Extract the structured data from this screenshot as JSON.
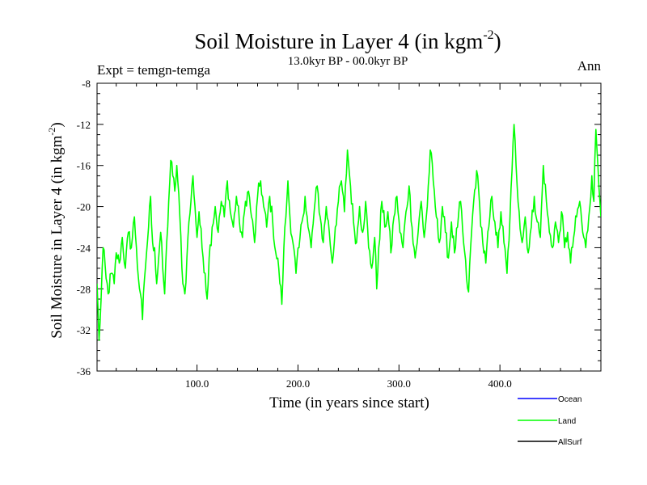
{
  "chart_data": {
    "type": "line",
    "title": "Soil Moisture in Layer 4 (in kgm",
    "title_sup": "-2",
    "title_close": ")",
    "subtitle": "13.0kyr BP - 00.0kyr BP",
    "expt_label": "Expt = temgn-temga",
    "season_label": "Ann",
    "xlabel": "Time (in years since start)",
    "ylabel": "Soil Moisture in Layer 4 (in kgm",
    "ylabel_sup": "-2",
    "ylabel_close": ")",
    "xlim": [
      1,
      500
    ],
    "ylim": [
      -36,
      -8
    ],
    "x_ticks": [
      100,
      200,
      300,
      400
    ],
    "x_tick_labels": [
      "100.0",
      "200.0",
      "300.0",
      "400.0"
    ],
    "y_ticks": [
      -36,
      -32,
      -28,
      -24,
      -20,
      -16,
      -12,
      -8
    ],
    "y_tick_labels": [
      "-36",
      "-32",
      "-28",
      "-24",
      "-20",
      "-16",
      "-12",
      "-8"
    ],
    "grid": false,
    "legend_position": "bottom-right",
    "series": [
      {
        "name": "Ocean",
        "color": "#0000ff",
        "values": []
      },
      {
        "name": "Land",
        "color": "#00ff00",
        "values": []
      },
      {
        "name": "AllSurf",
        "color": "#000000",
        "values": []
      }
    ],
    "land_anchor_points": [
      [
        1,
        -27.5
      ],
      [
        3,
        -33.0
      ],
      [
        5,
        -29.0
      ],
      [
        7,
        -24.0
      ],
      [
        10,
        -27.0
      ],
      [
        12,
        -28.5
      ],
      [
        15,
        -26.5
      ],
      [
        18,
        -27.5
      ],
      [
        20,
        -24.5
      ],
      [
        23,
        -25.5
      ],
      [
        26,
        -23.0
      ],
      [
        29,
        -26.0
      ],
      [
        32,
        -22.5
      ],
      [
        35,
        -24.0
      ],
      [
        38,
        -21.0
      ],
      [
        40,
        -24.0
      ],
      [
        42,
        -27.0
      ],
      [
        44,
        -28.5
      ],
      [
        46,
        -31.0
      ],
      [
        48,
        -27.0
      ],
      [
        50,
        -24.5
      ],
      [
        52,
        -22.0
      ],
      [
        54,
        -19.0
      ],
      [
        56,
        -23.5
      ],
      [
        58,
        -24.0
      ],
      [
        60,
        -27.5
      ],
      [
        62,
        -25.0
      ],
      [
        64,
        -22.5
      ],
      [
        66,
        -26.0
      ],
      [
        68,
        -28.5
      ],
      [
        70,
        -23.5
      ],
      [
        72,
        -19.5
      ],
      [
        74,
        -15.5
      ],
      [
        76,
        -17.0
      ],
      [
        78,
        -18.5
      ],
      [
        80,
        -16.0
      ],
      [
        83,
        -21.0
      ],
      [
        86,
        -27.5
      ],
      [
        88,
        -28.5
      ],
      [
        90,
        -25.0
      ],
      [
        92,
        -21.5
      ],
      [
        94,
        -19.5
      ],
      [
        96,
        -17.0
      ],
      [
        98,
        -20.0
      ],
      [
        100,
        -23.0
      ],
      [
        102,
        -20.5
      ],
      [
        105,
        -24.0
      ],
      [
        108,
        -26.5
      ],
      [
        110,
        -29.0
      ],
      [
        112,
        -25.0
      ],
      [
        115,
        -22.0
      ],
      [
        118,
        -20.0
      ],
      [
        121,
        -22.5
      ],
      [
        124,
        -19.5
      ],
      [
        127,
        -21.0
      ],
      [
        130,
        -17.5
      ],
      [
        133,
        -20.5
      ],
      [
        136,
        -22.0
      ],
      [
        139,
        -19.0
      ],
      [
        142,
        -21.5
      ],
      [
        145,
        -23.0
      ],
      [
        148,
        -19.5
      ],
      [
        151,
        -18.5
      ],
      [
        154,
        -21.0
      ],
      [
        157,
        -23.5
      ],
      [
        160,
        -19.0
      ],
      [
        163,
        -17.5
      ],
      [
        166,
        -20.0
      ],
      [
        169,
        -22.0
      ],
      [
        172,
        -19.0
      ],
      [
        175,
        -21.5
      ],
      [
        178,
        -24.5
      ],
      [
        181,
        -26.0
      ],
      [
        184,
        -29.5
      ],
      [
        186,
        -24.0
      ],
      [
        188,
        -21.0
      ],
      [
        190,
        -17.5
      ],
      [
        192,
        -21.0
      ],
      [
        195,
        -23.5
      ],
      [
        198,
        -26.5
      ],
      [
        201,
        -24.0
      ],
      [
        204,
        -21.5
      ],
      [
        207,
        -19.0
      ],
      [
        210,
        -22.0
      ],
      [
        213,
        -24.0
      ],
      [
        216,
        -20.5
      ],
      [
        219,
        -18.0
      ],
      [
        222,
        -21.0
      ],
      [
        225,
        -23.5
      ],
      [
        228,
        -20.0
      ],
      [
        231,
        -22.5
      ],
      [
        234,
        -25.5
      ],
      [
        237,
        -22.0
      ],
      [
        240,
        -19.5
      ],
      [
        243,
        -17.5
      ],
      [
        246,
        -20.5
      ],
      [
        249,
        -14.5
      ],
      [
        252,
        -18.0
      ],
      [
        255,
        -21.5
      ],
      [
        258,
        -23.5
      ],
      [
        261,
        -20.0
      ],
      [
        264,
        -22.5
      ],
      [
        267,
        -19.5
      ],
      [
        270,
        -24.0
      ],
      [
        273,
        -26.0
      ],
      [
        276,
        -23.0
      ],
      [
        278,
        -28.0
      ],
      [
        280,
        -24.0
      ],
      [
        283,
        -19.5
      ],
      [
        286,
        -22.0
      ],
      [
        289,
        -20.5
      ],
      [
        292,
        -24.5
      ],
      [
        295,
        -21.0
      ],
      [
        298,
        -19.0
      ],
      [
        301,
        -22.5
      ],
      [
        304,
        -24.0
      ],
      [
        307,
        -20.5
      ],
      [
        310,
        -18.0
      ],
      [
        313,
        -22.0
      ],
      [
        316,
        -25.0
      ],
      [
        319,
        -22.5
      ],
      [
        322,
        -19.5
      ],
      [
        325,
        -23.0
      ],
      [
        328,
        -20.0
      ],
      [
        331,
        -14.5
      ],
      [
        334,
        -17.5
      ],
      [
        337,
        -21.0
      ],
      [
        340,
        -23.5
      ],
      [
        343,
        -20.0
      ],
      [
        346,
        -22.5
      ],
      [
        349,
        -25.0
      ],
      [
        352,
        -21.5
      ],
      [
        355,
        -24.5
      ],
      [
        358,
        -22.0
      ],
      [
        361,
        -19.5
      ],
      [
        364,
        -23.5
      ],
      [
        367,
        -27.0
      ],
      [
        369,
        -28.3
      ],
      [
        371,
        -24.0
      ],
      [
        374,
        -19.5
      ],
      [
        377,
        -16.5
      ],
      [
        380,
        -20.0
      ],
      [
        383,
        -23.5
      ],
      [
        386,
        -25.5
      ],
      [
        389,
        -22.0
      ],
      [
        392,
        -19.0
      ],
      [
        395,
        -21.5
      ],
      [
        398,
        -24.0
      ],
      [
        401,
        -20.5
      ],
      [
        404,
        -23.5
      ],
      [
        407,
        -26.5
      ],
      [
        410,
        -21.0
      ],
      [
        412,
        -16.5
      ],
      [
        414,
        -12.0
      ],
      [
        416,
        -16.0
      ],
      [
        419,
        -20.5
      ],
      [
        422,
        -23.5
      ],
      [
        425,
        -21.0
      ],
      [
        428,
        -24.5
      ],
      [
        431,
        -22.0
      ],
      [
        434,
        -19.0
      ],
      [
        437,
        -21.5
      ],
      [
        440,
        -23.0
      ],
      [
        443,
        -16.0
      ],
      [
        446,
        -19.5
      ],
      [
        449,
        -22.5
      ],
      [
        452,
        -24.0
      ],
      [
        455,
        -21.5
      ],
      [
        458,
        -23.5
      ],
      [
        461,
        -20.5
      ],
      [
        464,
        -24.0
      ],
      [
        467,
        -22.5
      ],
      [
        470,
        -25.5
      ],
      [
        473,
        -23.0
      ],
      [
        476,
        -21.0
      ],
      [
        479,
        -19.5
      ],
      [
        482,
        -22.5
      ],
      [
        485,
        -24.0
      ],
      [
        488,
        -21.0
      ],
      [
        491,
        -17.0
      ],
      [
        493,
        -19.5
      ],
      [
        495,
        -12.5
      ],
      [
        497,
        -16.0
      ],
      [
        499,
        -19.5
      ],
      [
        500,
        -21.0
      ]
    ]
  }
}
